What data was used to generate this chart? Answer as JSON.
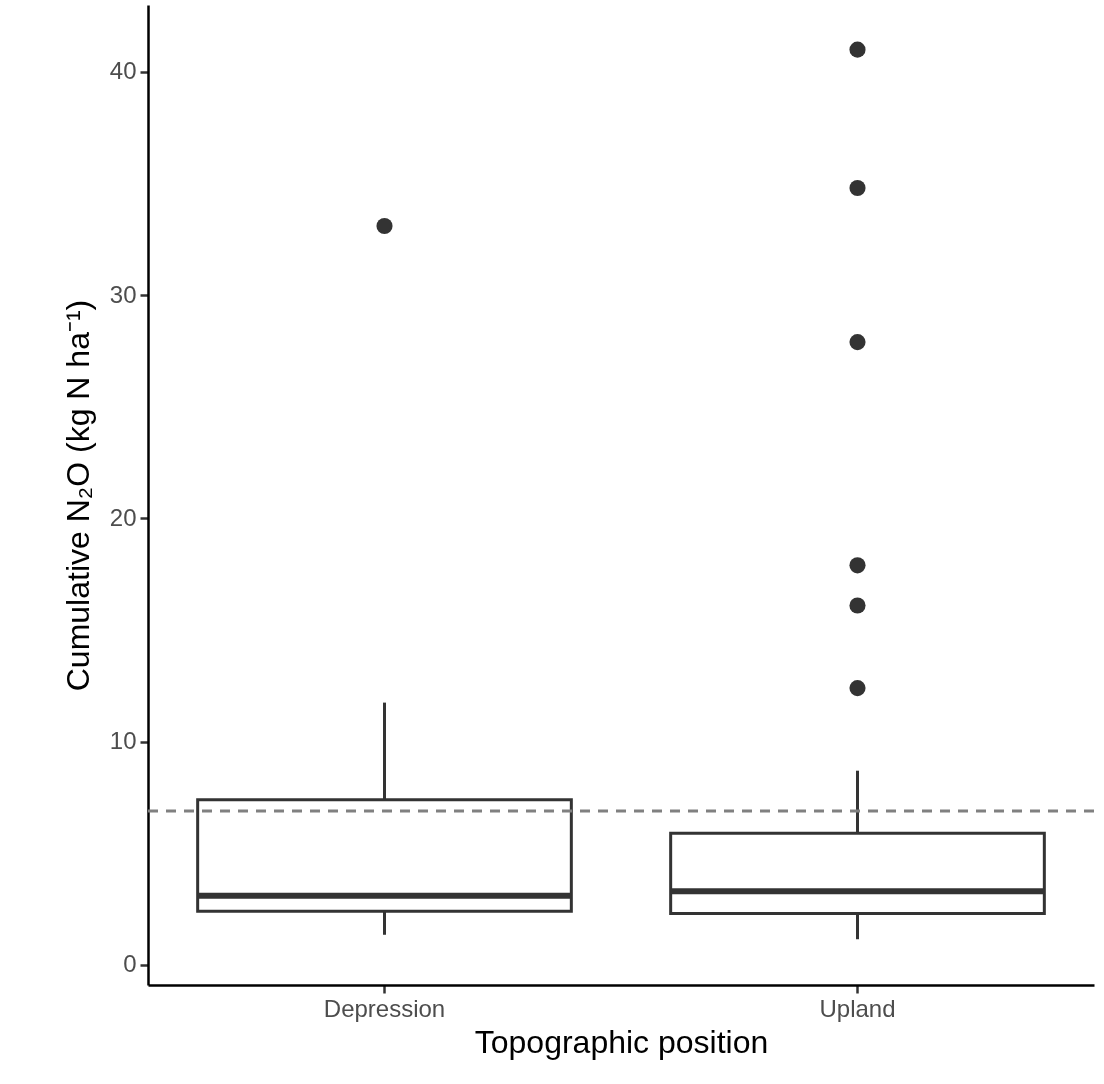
{
  "chart_data": {
    "type": "box",
    "categories": [
      "Depression",
      "Upland"
    ],
    "color": "#333333",
    "boxes": [
      {
        "low": 1.35,
        "q1": 2.4,
        "median": 3.1,
        "q3": 7.4,
        "high": 11.75,
        "outliers": [
          33.1
        ]
      },
      {
        "low": 1.15,
        "q1": 2.3,
        "median": 3.3,
        "q3": 5.9,
        "high": 8.7,
        "outliers": [
          41,
          34.8,
          27.9,
          17.9,
          16.1,
          12.4
        ]
      }
    ],
    "ylim": [
      -0.9,
      43
    ],
    "yticks": [
      0,
      10,
      20,
      30,
      40
    ],
    "grid": false,
    "xlabel": "Topographic position",
    "ylabel": "Cumulative N₂O (kg N ha⁻¹)",
    "ref_lines": [
      {
        "axis": "y",
        "value": 6.9,
        "line_style": "dashed",
        "color": "#808080"
      }
    ]
  }
}
